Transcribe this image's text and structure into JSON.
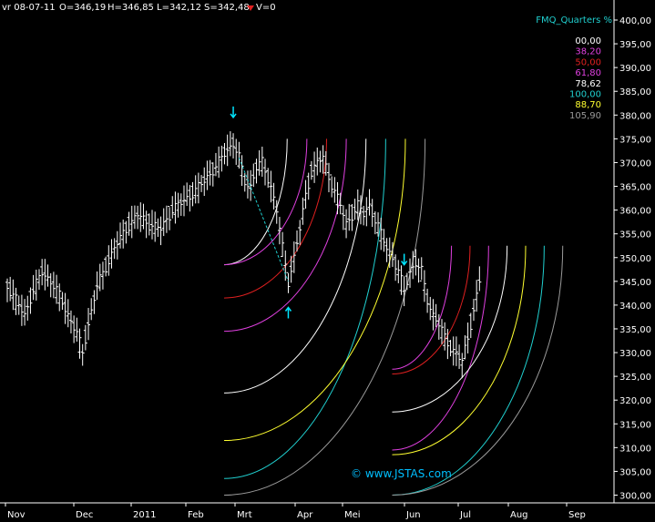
{
  "header": {
    "date": "vr 08-07-11",
    "open": "O=346,19",
    "high": "H=346,85",
    "low": "L=342,12",
    "close": "S=342,48",
    "volume": "V=0"
  },
  "colors": {
    "background": "#000000",
    "bars": "#ffffff",
    "axis": "#ffffff",
    "arrow": "#00e5ff",
    "watermark": "#00bfff",
    "fan_levels": [
      "#ffffff",
      "#e040e0",
      "#e02020",
      "#e040e0",
      "#ffffff",
      "#20d0d0",
      "#ffff30",
      "#9a9a9a"
    ]
  },
  "chart_data": {
    "type": "ohlc",
    "indicator_title": "FMQ_Quarters %",
    "watermark": "© www.JSTAS.com",
    "y_ticks": [
      "400,00",
      "395,00",
      "390,00",
      "385,00",
      "380,00",
      "375,00",
      "370,00",
      "365,00",
      "360,00",
      "355,00",
      "350,00",
      "345,00",
      "340,00",
      "335,00",
      "330,00",
      "325,00",
      "320,00",
      "315,00",
      "310,00",
      "305,00",
      "300,00"
    ],
    "ylim": [
      300,
      400
    ],
    "x_ticks": [
      "Nov",
      "Dec",
      "2011",
      "Feb",
      "Mrt",
      "Apr",
      "Mei",
      "Jun",
      "Jul",
      "Aug",
      "Sep"
    ],
    "legend": [
      {
        "label": "00,00",
        "color": "#ffffff"
      },
      {
        "label": "38,20",
        "color": "#e040e0"
      },
      {
        "label": "50,00",
        "color": "#e02020"
      },
      {
        "label": "61,80",
        "color": "#e040e0"
      },
      {
        "label": "78,62",
        "color": "#ffffff"
      },
      {
        "label": "100,00",
        "color": "#20d0d0"
      },
      {
        "label": "88,70",
        "color": "#ffff30"
      },
      {
        "label": "105,90",
        "color": "#9a9a9a"
      }
    ],
    "price_path": [
      [
        0,
        344
      ],
      [
        3,
        341
      ],
      [
        6,
        338
      ],
      [
        9,
        343
      ],
      [
        12,
        347
      ],
      [
        15,
        345
      ],
      [
        18,
        342
      ],
      [
        21,
        338
      ],
      [
        24,
        334
      ],
      [
        26,
        330
      ],
      [
        28,
        336
      ],
      [
        31,
        344
      ],
      [
        34,
        348
      ],
      [
        37,
        352
      ],
      [
        41,
        356
      ],
      [
        45,
        359
      ],
      [
        49,
        357
      ],
      [
        53,
        356
      ],
      [
        57,
        360
      ],
      [
        61,
        362
      ],
      [
        65,
        364
      ],
      [
        69,
        367
      ],
      [
        72,
        369
      ],
      [
        75,
        372
      ],
      [
        78,
        374
      ],
      [
        80,
        371
      ],
      [
        82,
        366
      ],
      [
        84,
        365
      ],
      [
        86,
        369
      ],
      [
        88,
        370
      ],
      [
        91,
        365
      ],
      [
        93,
        360
      ],
      [
        95,
        352
      ],
      [
        97,
        345
      ],
      [
        99,
        350
      ],
      [
        101,
        356
      ],
      [
        103,
        363
      ],
      [
        105,
        368
      ],
      [
        107,
        370
      ],
      [
        109,
        371
      ],
      [
        111,
        367
      ],
      [
        113,
        364
      ],
      [
        115,
        361
      ],
      [
        117,
        357
      ],
      [
        119,
        359
      ],
      [
        121,
        361
      ],
      [
        123,
        359
      ],
      [
        125,
        361
      ],
      [
        127,
        358
      ],
      [
        129,
        355
      ],
      [
        131,
        352
      ],
      [
        133,
        350
      ],
      [
        135,
        347
      ],
      [
        137,
        343
      ],
      [
        139,
        347
      ],
      [
        141,
        349
      ],
      [
        143,
        347
      ],
      [
        145,
        341
      ],
      [
        147,
        338
      ],
      [
        149,
        336
      ],
      [
        151,
        333
      ],
      [
        153,
        331
      ],
      [
        155,
        330
      ],
      [
        157,
        328
      ],
      [
        159,
        333
      ],
      [
        161,
        339
      ],
      [
        163,
        345
      ]
    ],
    "arrows": [
      {
        "type": "down",
        "index": 78
      },
      {
        "type": "up",
        "index": 97
      },
      {
        "type": "down",
        "index": 137
      }
    ],
    "dashed_line": {
      "from_index": 80,
      "to_index": 97
    },
    "fans": [
      {
        "start_index": 78,
        "end_index": 146,
        "levels": [
          {
            "color": "#ffffff",
            "start": 348.5,
            "end": 375
          },
          {
            "color": "#e040e0",
            "start": 348.5,
            "end": 375
          },
          {
            "color": "#e02020",
            "start": 341.5,
            "end": 375
          },
          {
            "color": "#e040e0",
            "start": 334.5,
            "end": 375
          },
          {
            "color": "#ffffff",
            "start": 321.5,
            "end": 375
          },
          {
            "color": "#20d0d0",
            "start": 303.5,
            "end": 375
          },
          {
            "color": "#ffff30",
            "start": 311.5,
            "end": 375
          },
          {
            "color": "#9a9a9a",
            "start": 300,
            "end": 375
          }
        ]
      },
      {
        "start_index": 136,
        "end_index": 200,
        "levels": [
          {
            "color": "#e040e0",
            "start": 326.5,
            "end": 352.5
          },
          {
            "color": "#e02020",
            "start": 325.5,
            "end": 352.5
          },
          {
            "color": "#e040e0",
            "start": 309.5,
            "end": 352.5
          },
          {
            "color": "#ffffff",
            "start": 317.5,
            "end": 352.5
          },
          {
            "color": "#ffff30",
            "start": 308.5,
            "end": 352.5
          },
          {
            "color": "#20d0d0",
            "start": 300,
            "end": 352.5
          },
          {
            "color": "#9a9a9a",
            "start": 300,
            "end": 352.5
          }
        ]
      }
    ]
  }
}
